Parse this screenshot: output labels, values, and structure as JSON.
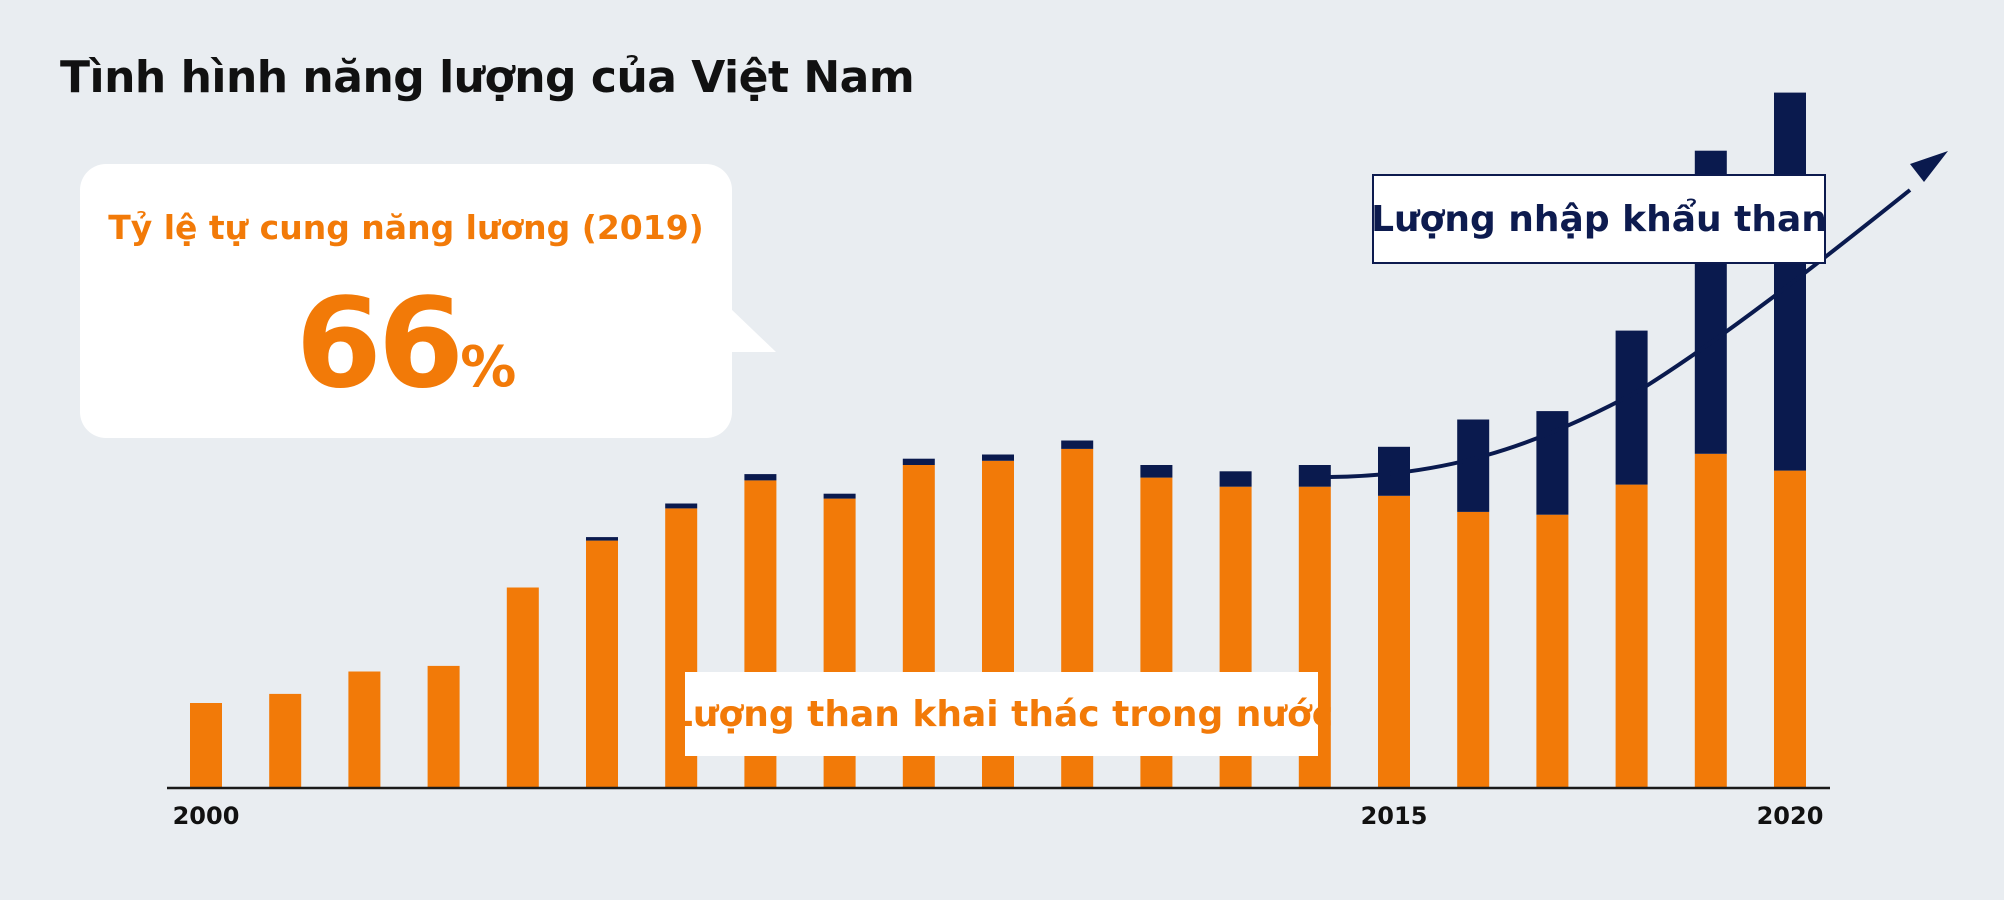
{
  "title": "Tình hình năng lượng của Việt Nam",
  "callout": {
    "label": "Tỷ lệ tự cung năng lương (2019)",
    "number": "66",
    "unit": "%"
  },
  "colors": {
    "domestic": "#f27a08",
    "import": "#0a1a4e",
    "background": "#e9edf1"
  },
  "chart_data": {
    "type": "bar",
    "stacked": true,
    "title": "Tình hình năng lượng của Việt Nam",
    "x": [
      2000,
      2001,
      2002,
      2003,
      2004,
      2005,
      2006,
      2007,
      2008,
      2009,
      2010,
      2011,
      2012,
      2013,
      2014,
      2015,
      2016,
      2017,
      2018,
      2019,
      2020
    ],
    "tick_labels": [
      {
        "x": 2000,
        "label": "2000"
      },
      {
        "x": 2015,
        "label": "2015"
      },
      {
        "x": 2020,
        "label": "2020"
      }
    ],
    "ylim": [
      0,
      100
    ],
    "grid": false,
    "series": [
      {
        "name": "Lượng than khai thác trong nước",
        "values": [
          12,
          13.3,
          16.5,
          17.3,
          28.5,
          35.2,
          39.8,
          43.8,
          41.2,
          46,
          46.6,
          48.3,
          44.2,
          42.9,
          42.9,
          41.6,
          39.3,
          38.9,
          43.2,
          47.6,
          45.2
        ]
      },
      {
        "name": "Lượng nhập khẩu than",
        "values": [
          0,
          0,
          0,
          0,
          0,
          0.5,
          0.7,
          0.9,
          0.7,
          0.9,
          0.9,
          1.2,
          1.8,
          2.2,
          3.1,
          7.0,
          13.2,
          14.8,
          22.0,
          43.3,
          54.0
        ]
      }
    ],
    "trend_arrow": true
  }
}
